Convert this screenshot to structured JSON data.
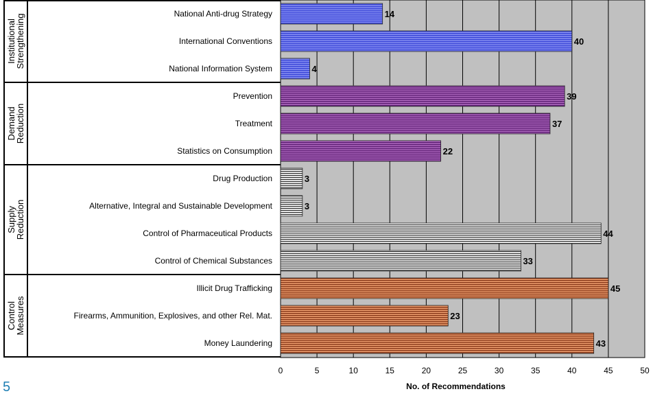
{
  "page_number": "5",
  "chart_data": {
    "type": "bar",
    "orientation": "horizontal",
    "xlabel": "No. of Recommendations",
    "xlim": [
      0,
      50
    ],
    "xticks": [
      "0",
      "5",
      "10",
      "15",
      "20",
      "25",
      "30",
      "35",
      "40",
      "45",
      "50"
    ],
    "grid": true,
    "groups": [
      {
        "label_lines": [
          "Institutional",
          "Strengthening"
        ],
        "color": "#4a57e8",
        "categories": [
          "National Anti-drug Strategy",
          "International Conventions",
          "National Information System"
        ],
        "values": [
          14,
          40,
          4
        ]
      },
      {
        "label_lines": [
          "Demand",
          "Reduction"
        ],
        "color": "#7a2f8f",
        "categories": [
          "Prevention",
          "Treatment",
          "Statistics on Consumption"
        ],
        "values": [
          39,
          37,
          22
        ]
      },
      {
        "label_lines": [
          "Supply",
          "Reduction"
        ],
        "color": "#e8e8e8",
        "categories": [
          "Drug Production",
          "Alternative, Integral and Sustainable Development",
          "Control of Pharmaceutical Products",
          "Control of Chemical Substances"
        ],
        "values": [
          3,
          3,
          44,
          33
        ]
      },
      {
        "label_lines": [
          "Control",
          "Measures"
        ],
        "color": "#e07a3a",
        "categories": [
          "Illicit Drug Trafficking",
          "Firearms, Ammunition, Explosives, and other Rel. Mat.",
          "Money Laundering"
        ],
        "values": [
          45,
          23,
          43
        ]
      }
    ]
  }
}
